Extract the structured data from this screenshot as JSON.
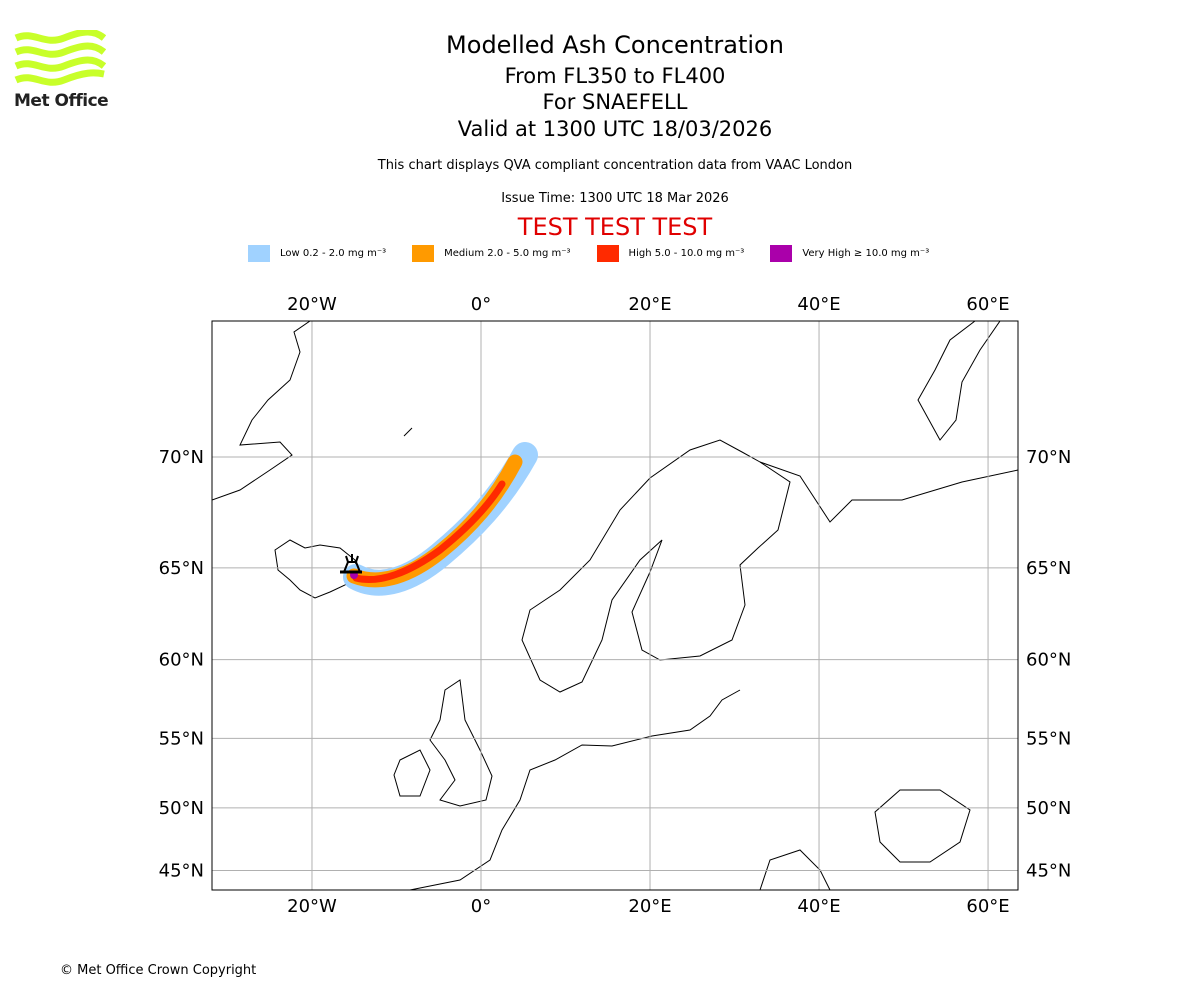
{
  "logo": {
    "text": "Met Office"
  },
  "title": {
    "line1": "Modelled Ash Concentration",
    "line2": "From FL350 to FL400",
    "line3": "For SNAEFELL",
    "line4": "Valid at 1300 UTC 18/03/2026"
  },
  "subtitle": "This chart displays QVA compliant concentration data from VAAC London",
  "issue_time": "Issue Time: 1300 UTC 18 Mar 2026",
  "test_banner": "TEST TEST TEST",
  "legend": [
    {
      "label": "Low 0.2 - 2.0 mg m⁻³",
      "color": "#a0d2ff"
    },
    {
      "label": "Medium 2.0 - 5.0 mg m⁻³",
      "color": "#ff9a00"
    },
    {
      "label": "High 5.0 - 10.0 mg m⁻³",
      "color": "#ff2a00"
    },
    {
      "label": "Very High ≥ 10.0 mg m⁻³",
      "color": "#aa00aa"
    }
  ],
  "map": {
    "lon_ticks": [
      {
        "value": -20,
        "label": "20°W"
      },
      {
        "value": 0,
        "label": "0°"
      },
      {
        "value": 20,
        "label": "20°E"
      },
      {
        "value": 40,
        "label": "40°E"
      },
      {
        "value": 60,
        "label": "60°E"
      }
    ],
    "lat_ticks": [
      {
        "value": 70,
        "label": "70°N"
      },
      {
        "value": 65,
        "label": "65°N"
      },
      {
        "value": 60,
        "label": "60°N"
      },
      {
        "value": 55,
        "label": "55°N"
      },
      {
        "value": 50,
        "label": "50°N"
      },
      {
        "value": 45,
        "label": "45°N"
      }
    ],
    "volcano": {
      "name": "SNAEFELL",
      "icon": "volcano-icon"
    }
  },
  "footer": "© Met Office Crown Copyright"
}
